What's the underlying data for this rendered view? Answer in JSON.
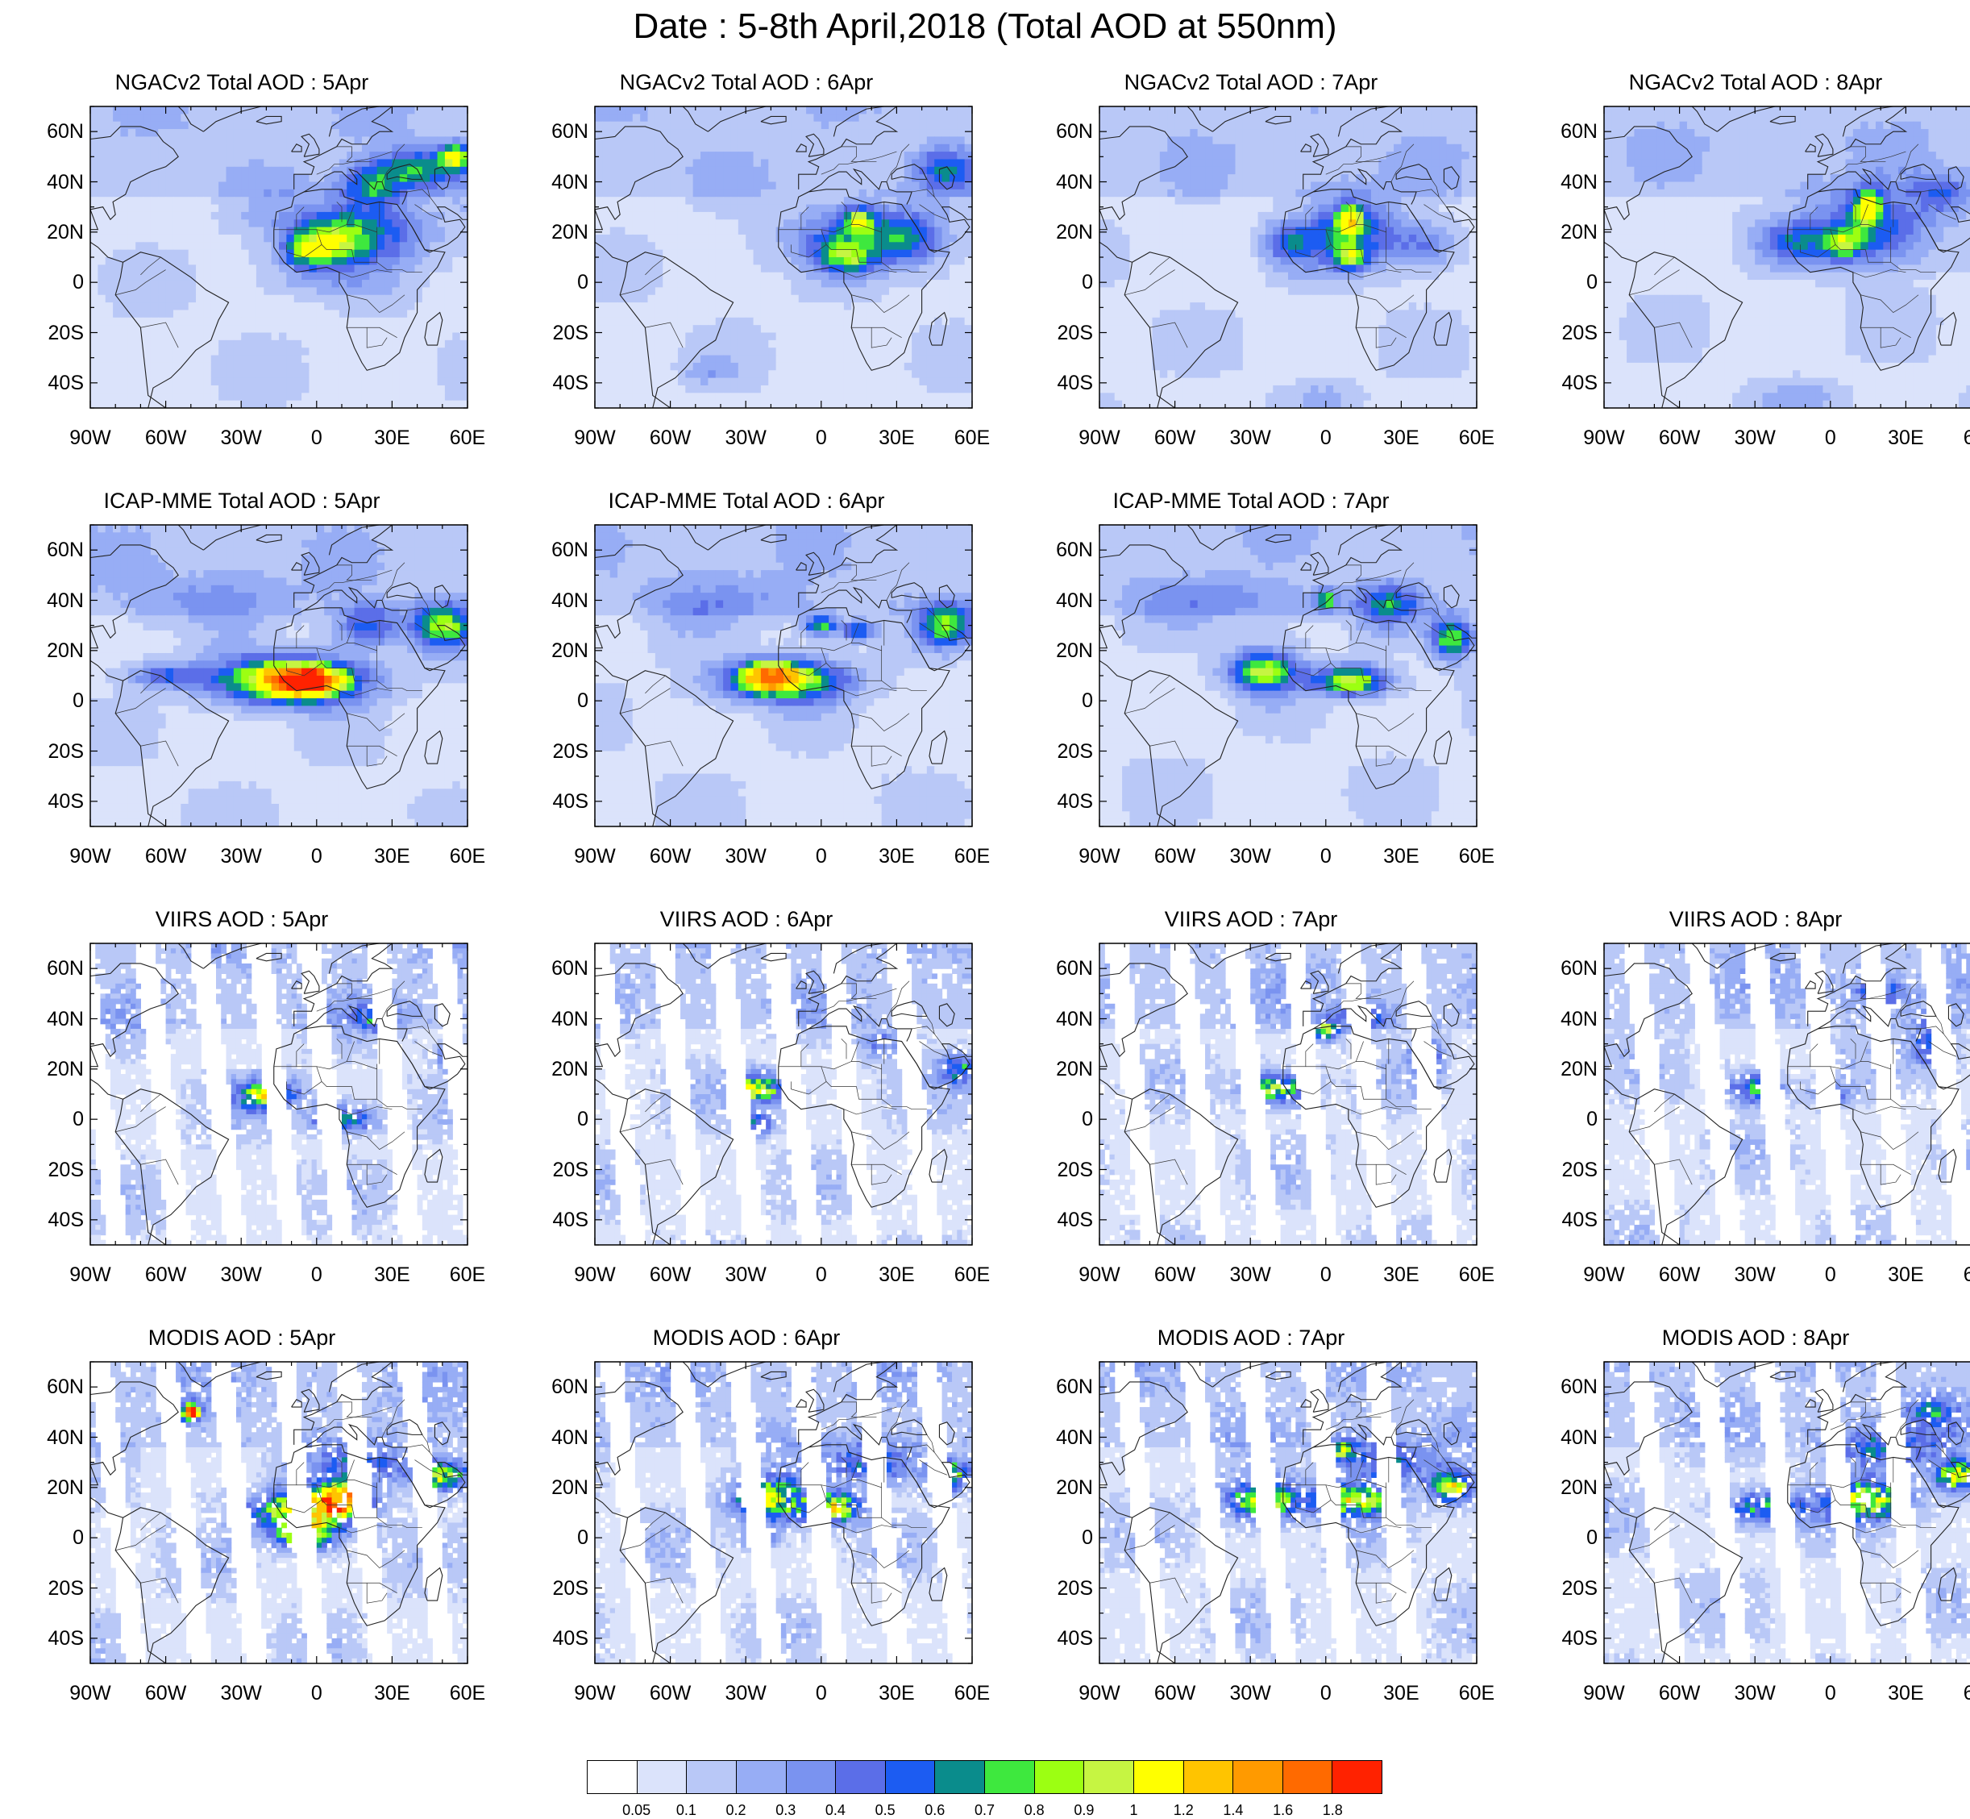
{
  "title": "Date : 5-8th April,2018 (Total AOD at 550nm)",
  "axes": {
    "lon_ticks": [
      "90W",
      "60W",
      "30W",
      "0",
      "30E",
      "60E"
    ],
    "lat_ticks": [
      "60N",
      "40N",
      "20N",
      "0",
      "20S",
      "40S"
    ],
    "lon_range": [
      -90,
      60
    ],
    "lat_range": [
      -50,
      70
    ]
  },
  "panels": [
    {
      "title": "NGACv2 Total AOD : 5Apr",
      "row": 0,
      "col": 0,
      "style": "model",
      "plumes": [
        [
          15,
          20,
          28,
          13,
          0.6
        ],
        [
          5,
          15,
          12,
          8,
          0.55
        ],
        [
          -5,
          12,
          8,
          6,
          0.5
        ],
        [
          40,
          45,
          18,
          8,
          0.55
        ],
        [
          55,
          50,
          6,
          5,
          0.8
        ],
        [
          22,
          38,
          12,
          8,
          0.4
        ],
        [
          0,
          0,
          18,
          6,
          0.15
        ]
      ]
    },
    {
      "title": "NGACv2 Total AOD : 6Apr",
      "row": 0,
      "col": 1,
      "style": "model",
      "plumes": [
        [
          15,
          18,
          28,
          12,
          0.5
        ],
        [
          10,
          10,
          10,
          6,
          0.5
        ],
        [
          15,
          25,
          6,
          5,
          0.6
        ],
        [
          35,
          18,
          12,
          10,
          0.35
        ],
        [
          50,
          45,
          12,
          8,
          0.4
        ],
        [
          -45,
          -35,
          10,
          5,
          0.15
        ]
      ]
    },
    {
      "title": "NGACv2 Total AOD : 7Apr",
      "row": 0,
      "col": 2,
      "style": "model",
      "plumes": [
        [
          10,
          20,
          20,
          14,
          0.55
        ],
        [
          10,
          25,
          5,
          6,
          0.8
        ],
        [
          10,
          10,
          6,
          5,
          0.6
        ],
        [
          -15,
          15,
          10,
          8,
          0.35
        ],
        [
          40,
          15,
          12,
          8,
          0.3
        ],
        [
          0,
          -45,
          15,
          6,
          0.15
        ]
      ]
    },
    {
      "title": "NGACv2 Total AOD : 8Apr",
      "row": 0,
      "col": 3,
      "style": "model",
      "plumes": [
        [
          15,
          22,
          25,
          15,
          0.55
        ],
        [
          15,
          30,
          5,
          6,
          0.85
        ],
        [
          5,
          15,
          8,
          6,
          0.55
        ],
        [
          -15,
          15,
          12,
          8,
          0.35
        ],
        [
          45,
          35,
          12,
          8,
          0.35
        ],
        [
          -10,
          -45,
          15,
          6,
          0.15
        ]
      ]
    },
    {
      "title": "ICAP-MME Total AOD : 5Apr",
      "row": 1,
      "col": 0,
      "style": "model",
      "plumes": [
        [
          -10,
          8,
          28,
          9,
          1.15
        ],
        [
          -5,
          8,
          12,
          5,
          1.45
        ],
        [
          50,
          30,
          12,
          8,
          0.8
        ],
        [
          20,
          30,
          12,
          8,
          0.5
        ],
        [
          -60,
          10,
          15,
          5,
          0.4
        ],
        [
          -40,
          40,
          30,
          10,
          0.2
        ]
      ]
    },
    {
      "title": "ICAP-MME Total AOD : 6Apr",
      "row": 1,
      "col": 1,
      "style": "model",
      "plumes": [
        [
          -15,
          8,
          25,
          8,
          0.9
        ],
        [
          -20,
          10,
          10,
          5,
          1.05
        ],
        [
          50,
          30,
          10,
          8,
          0.75
        ],
        [
          0,
          30,
          6,
          4,
          0.7
        ],
        [
          15,
          28,
          6,
          4,
          0.6
        ],
        [
          -40,
          40,
          30,
          10,
          0.2
        ]
      ]
    },
    {
      "title": "ICAP-MME Total AOD : 7Apr",
      "row": 1,
      "col": 2,
      "style": "model",
      "plumes": [
        [
          -25,
          12,
          14,
          8,
          0.85
        ],
        [
          10,
          8,
          14,
          6,
          0.9
        ],
        [
          50,
          25,
          8,
          8,
          0.8
        ],
        [
          0,
          40,
          4,
          4,
          0.7
        ],
        [
          25,
          38,
          12,
          8,
          0.45
        ],
        [
          -40,
          40,
          30,
          10,
          0.2
        ]
      ]
    },
    {
      "title": "VIIRS AOD : 5Apr",
      "row": 2,
      "col": 0,
      "style": "sat",
      "swaths": [
        -85,
        -60,
        -38,
        -15,
        5,
        32,
        58
      ],
      "plumes": [
        [
          -20,
          10,
          12,
          6,
          0.8
        ],
        [
          10,
          0,
          12,
          5,
          0.6
        ],
        [
          55,
          25,
          6,
          5,
          0.6
        ],
        [
          25,
          40,
          10,
          6,
          0.35
        ]
      ]
    },
    {
      "title": "VIIRS AOD : 6Apr",
      "row": 2,
      "col": 1,
      "style": "sat",
      "swaths": [
        -80,
        -55,
        -32,
        -10,
        12,
        38
      ],
      "plumes": [
        [
          -25,
          12,
          10,
          6,
          0.8
        ],
        [
          -25,
          -2,
          6,
          4,
          0.55
        ],
        [
          55,
          20,
          8,
          6,
          0.5
        ],
        [
          25,
          30,
          10,
          6,
          0.3
        ]
      ]
    },
    {
      "title": "VIIRS AOD : 7Apr",
      "row": 2,
      "col": 2,
      "style": "sat",
      "swaths": [
        -75,
        -50,
        -28,
        -5,
        18,
        42
      ],
      "plumes": [
        [
          -20,
          12,
          12,
          6,
          0.7
        ],
        [
          0,
          35,
          5,
          4,
          0.7
        ],
        [
          40,
          25,
          6,
          8,
          0.5
        ],
        [
          15,
          40,
          12,
          6,
          0.35
        ]
      ]
    },
    {
      "title": "VIIRS AOD : 8Apr",
      "row": 2,
      "col": 3,
      "style": "sat",
      "swaths": [
        -70,
        -45,
        -22,
        0,
        24,
        48
      ],
      "plumes": [
        [
          -30,
          12,
          10,
          6,
          0.55
        ],
        [
          40,
          30,
          8,
          10,
          0.45
        ],
        [
          20,
          50,
          12,
          6,
          0.35
        ],
        [
          0,
          10,
          8,
          4,
          0.4
        ]
      ]
    },
    {
      "title": "MODIS AOD : 5Apr",
      "row": 3,
      "col": 0,
      "style": "sat",
      "swaths": [
        -78,
        -52,
        -30,
        -5,
        20,
        45
      ],
      "plumes": [
        [
          -5,
          10,
          20,
          8,
          1.0
        ],
        [
          10,
          15,
          10,
          6,
          1.2
        ],
        [
          -5,
          0,
          10,
          5,
          0.9
        ],
        [
          50,
          25,
          10,
          6,
          0.8
        ],
        [
          20,
          30,
          20,
          8,
          0.4
        ],
        [
          -50,
          50,
          3,
          3,
          1.7
        ]
      ]
    },
    {
      "title": "MODIS AOD : 6Apr",
      "row": 3,
      "col": 1,
      "style": "sat",
      "swaths": [
        -75,
        -48,
        -25,
        0,
        25,
        50
      ],
      "plumes": [
        [
          -20,
          15,
          15,
          8,
          0.85
        ],
        [
          5,
          12,
          10,
          6,
          0.9
        ],
        [
          50,
          25,
          8,
          6,
          0.8
        ],
        [
          20,
          30,
          20,
          8,
          0.45
        ],
        [
          -25,
          0,
          6,
          4,
          0.6
        ]
      ]
    },
    {
      "title": "MODIS AOD : 7Apr",
      "row": 3,
      "col": 2,
      "style": "sat",
      "swaths": [
        -72,
        -45,
        -22,
        3,
        28
      ],
      "plumes": [
        [
          -25,
          15,
          15,
          8,
          0.8
        ],
        [
          10,
          15,
          15,
          6,
          0.9
        ],
        [
          50,
          20,
          8,
          6,
          0.9
        ],
        [
          5,
          35,
          6,
          4,
          0.7
        ],
        [
          25,
          30,
          20,
          8,
          0.45
        ]
      ]
    },
    {
      "title": "MODIS AOD : 8Apr",
      "row": 3,
      "col": 3,
      "style": "sat",
      "swaths": [
        -68,
        -42,
        -18,
        6,
        30
      ],
      "plumes": [
        [
          -25,
          12,
          15,
          6,
          0.6
        ],
        [
          15,
          15,
          15,
          8,
          0.8
        ],
        [
          50,
          25,
          8,
          6,
          0.9
        ],
        [
          20,
          35,
          20,
          8,
          0.45
        ],
        [
          40,
          50,
          10,
          6,
          0.35
        ]
      ]
    }
  ],
  "colorbar": {
    "colors": [
      "#ffffff",
      "#dbe3fb",
      "#b9c8f7",
      "#97adf5",
      "#7a93f0",
      "#5b6ee8",
      "#1c5cf2",
      "#0a8c8c",
      "#3ee83e",
      "#9cff12",
      "#c6f542",
      "#ffff00",
      "#ffc400",
      "#ff9a00",
      "#ff6a00",
      "#ff2200"
    ],
    "labels": [
      "0.05",
      "0.1",
      "0.2",
      "0.3",
      "0.4",
      "0.5",
      "0.6",
      "0.7",
      "0.8",
      "0.9",
      "1",
      "1.2",
      "1.4",
      "1.6",
      "1.8"
    ],
    "thresholds": [
      0.05,
      0.1,
      0.2,
      0.3,
      0.4,
      0.5,
      0.6,
      0.7,
      0.8,
      0.9,
      1,
      1.2,
      1.4,
      1.6,
      1.8
    ]
  }
}
